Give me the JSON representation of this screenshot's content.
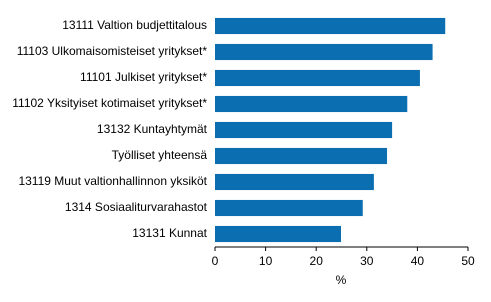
{
  "chart_data": {
    "type": "barh",
    "categories": [
      "13111 Valtion budjettitalous",
      "11103 Ulkomaisomisteiset yritykset*",
      "11101 Julkiset yritykset*",
      "11102 Yksityiset kotimaiset yritykset*",
      "13132 Kuntayhtymät",
      "Työlliset yhteensä",
      "13119 Muut valtionhallinnon yksiköt",
      "1314 Sosiaaliturvarahastot",
      "13131 Kunnat"
    ],
    "values": [
      45.5,
      43,
      40.5,
      38,
      35,
      34,
      31.4,
      29.2,
      24.9
    ],
    "color": "#0a6eb0",
    "xlabel": "%",
    "xlim": [
      0,
      50
    ],
    "xticks": [
      0,
      10,
      20,
      30,
      40,
      50
    ],
    "grid": false
  }
}
